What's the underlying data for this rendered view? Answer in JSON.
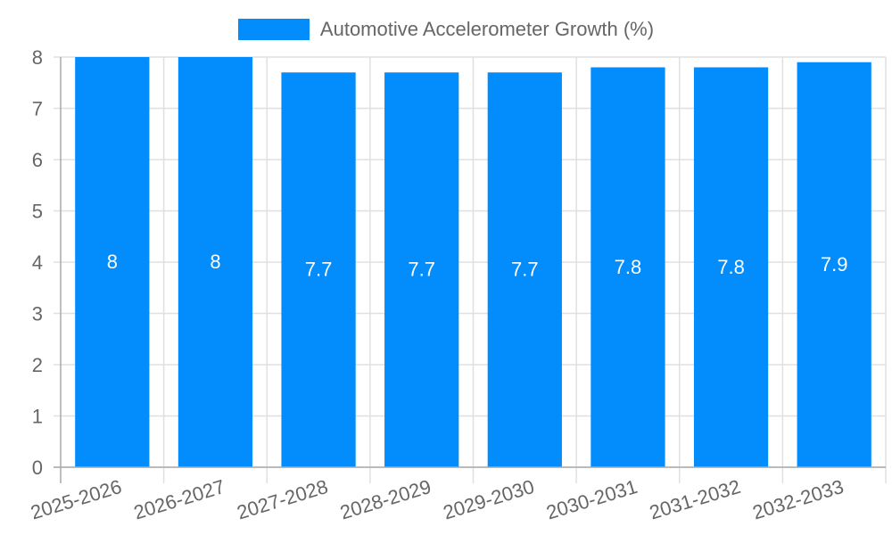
{
  "chart_data": {
    "type": "bar",
    "title": "",
    "xlabel": "",
    "ylabel": "",
    "categories": [
      "2025-2026",
      "2026-2027",
      "2027-2028",
      "2028-2029",
      "2029-2030",
      "2030-2031",
      "2031-2032",
      "2032-2033"
    ],
    "series": [
      {
        "name": "Automotive Accelerometer Growth (%)",
        "values": [
          8,
          8,
          7.7,
          7.7,
          7.7,
          7.8,
          7.8,
          7.9
        ],
        "color": "#038cfc"
      }
    ],
    "data_labels": [
      "8",
      "8",
      "7.7",
      "7.7",
      "7.7",
      "7.8",
      "7.8",
      "7.9"
    ],
    "ylim": [
      0,
      8
    ],
    "yticks": [
      0,
      1,
      2,
      3,
      4,
      5,
      6,
      7,
      8
    ],
    "grid": true,
    "legend_position": "top"
  },
  "legend": {
    "label": "Automotive Accelerometer Growth (%)",
    "color": "#038cfc"
  },
  "colors": {
    "bar": "#038cfc",
    "grid": "#e0e0e0",
    "axis": "#aaaaaa",
    "tick_text": "#666666",
    "data_label": "#ffffff"
  }
}
